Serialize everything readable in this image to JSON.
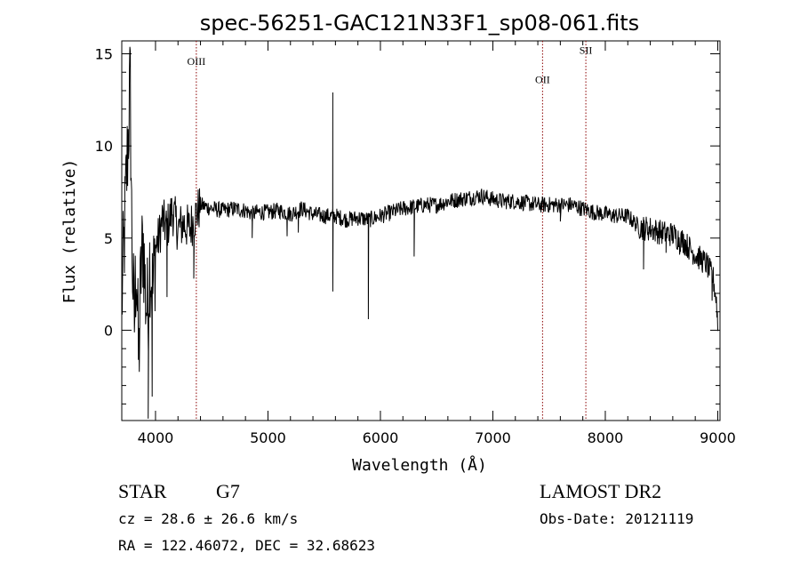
{
  "chart_data": {
    "type": "line",
    "title": "spec-56251-GAC121N33F1_sp08-061.fits",
    "xlabel": "Wavelength (Å)",
    "ylabel": "Flux (relative)",
    "xlim": [
      3700,
      9020
    ],
    "ylim": [
      -4.9,
      15.7
    ],
    "xticks": [
      4000,
      5000,
      6000,
      7000,
      8000,
      9000
    ],
    "yticks": [
      0,
      5,
      10,
      15
    ],
    "grid": false,
    "line_color": "#000000",
    "lines": [
      {
        "name": "OIII",
        "x": 4363,
        "label_y": 14.4
      },
      {
        "name": "OII",
        "x": 7442,
        "label_y": 13.4
      },
      {
        "name": "SII",
        "x": 7827,
        "label_y": 15.0
      }
    ],
    "line_marker_color": "#8b0000",
    "anchors": [
      [
        3700,
        1.5
      ],
      [
        3720,
        4.5
      ],
      [
        3740,
        8.0
      ],
      [
        3760,
        11.0
      ],
      [
        3775,
        13.5
      ],
      [
        3790,
        5.0
      ],
      [
        3810,
        0.0
      ],
      [
        3830,
        4.0
      ],
      [
        3850,
        -2.0
      ],
      [
        3870,
        3.0
      ],
      [
        3890,
        5.0
      ],
      [
        3910,
        2.0
      ],
      [
        3930,
        1.0
      ],
      [
        3950,
        4.0
      ],
      [
        3975,
        2.0
      ],
      [
        4000,
        4.5
      ],
      [
        4030,
        5.0
      ],
      [
        4060,
        6.0
      ],
      [
        4100,
        5.5
      ],
      [
        4150,
        6.5
      ],
      [
        4200,
        5.5
      ],
      [
        4250,
        5.8
      ],
      [
        4300,
        5.5
      ],
      [
        4340,
        6.0
      ],
      [
        4400,
        6.8
      ],
      [
        4500,
        6.6
      ],
      [
        4600,
        6.5
      ],
      [
        4700,
        6.6
      ],
      [
        4800,
        6.5
      ],
      [
        4860,
        6.3
      ],
      [
        4900,
        6.4
      ],
      [
        5000,
        6.4
      ],
      [
        5100,
        6.5
      ],
      [
        5200,
        6.3
      ],
      [
        5300,
        6.6
      ],
      [
        5400,
        6.3
      ],
      [
        5500,
        6.2
      ],
      [
        5600,
        6.2
      ],
      [
        5700,
        6.0
      ],
      [
        5800,
        6.1
      ],
      [
        5900,
        6.0
      ],
      [
        6000,
        6.2
      ],
      [
        6100,
        6.4
      ],
      [
        6200,
        6.6
      ],
      [
        6300,
        6.7
      ],
      [
        6400,
        6.8
      ],
      [
        6500,
        6.8
      ],
      [
        6600,
        7.0
      ],
      [
        6700,
        7.1
      ],
      [
        6800,
        7.2
      ],
      [
        6900,
        7.3
      ],
      [
        7000,
        7.1
      ],
      [
        7100,
        7.0
      ],
      [
        7200,
        7.0
      ],
      [
        7300,
        6.9
      ],
      [
        7400,
        6.8
      ],
      [
        7500,
        6.8
      ],
      [
        7600,
        6.8
      ],
      [
        7700,
        6.8
      ],
      [
        7800,
        6.6
      ],
      [
        7900,
        6.4
      ],
      [
        8000,
        6.3
      ],
      [
        8100,
        6.2
      ],
      [
        8200,
        6.2
      ],
      [
        8300,
        5.6
      ],
      [
        8400,
        5.5
      ],
      [
        8500,
        5.3
      ],
      [
        8600,
        5.2
      ],
      [
        8700,
        4.8
      ],
      [
        8800,
        4.1
      ],
      [
        8900,
        3.6
      ],
      [
        8960,
        2.8
      ],
      [
        8990,
        1.5
      ],
      [
        9000,
        0.2
      ]
    ],
    "features": [
      [
        3935,
        -4.8
      ],
      [
        3970,
        -3.6
      ],
      [
        4102,
        1.8
      ],
      [
        4340,
        2.8
      ],
      [
        4860,
        5.0
      ],
      [
        5170,
        5.1
      ],
      [
        5270,
        5.3
      ],
      [
        5577,
        12.9
      ],
      [
        5577,
        2.1
      ],
      [
        5893,
        0.6
      ],
      [
        6300,
        4.0
      ],
      [
        7600,
        5.9
      ],
      [
        8340,
        3.3
      ],
      [
        8540,
        4.2
      ],
      [
        8660,
        4.1
      ],
      [
        8950,
        1.6
      ]
    ]
  },
  "footer": {
    "object_class": "STAR",
    "subclass": "G7",
    "cz": "cz = 28.6 ± 26.6 km/s",
    "radec": "RA = 122.46072, DEC =  32.68623",
    "survey": "LAMOST DR2",
    "obs_date": "Obs-Date: 20121119"
  }
}
